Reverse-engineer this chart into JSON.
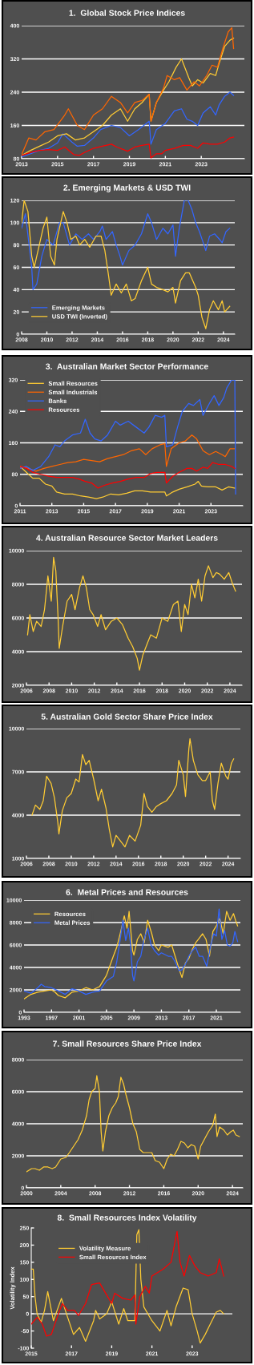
{
  "chart_data": [
    {
      "type": "line",
      "title": "1.  Global Stock Price Indices",
      "xlim": [
        2013,
        2025.4
      ],
      "xticks": [
        2013,
        2015,
        2017,
        2019,
        2021,
        2023
      ],
      "ylim": [
        80,
        400
      ],
      "yticks": [
        80,
        160,
        240,
        320,
        400
      ],
      "grid": "y",
      "series": [
        {
          "color": "#3366ff",
          "x": [
            2013,
            2013.5,
            2014,
            2014.5,
            2015,
            2015.3,
            2015.8,
            2016.1,
            2016.5,
            2017,
            2017.4,
            2018,
            2018.5,
            2019,
            2019.5,
            2020.1,
            2020.2,
            2020.5,
            2021,
            2021.5,
            2021.9,
            2022.2,
            2022.5,
            2022.8,
            2023.1,
            2023.5,
            2023.8,
            2024,
            2024.3,
            2024.6,
            2024.8
          ],
          "values": [
            84,
            92,
            100,
            105,
            118,
            140,
            120,
            110,
            112,
            130,
            150,
            160,
            155,
            135,
            150,
            170,
            115,
            150,
            165,
            195,
            200,
            175,
            170,
            160,
            190,
            205,
            185,
            210,
            230,
            240,
            232
          ]
        },
        {
          "color": "#ffcc33",
          "x": [
            2013,
            2013.5,
            2014,
            2014.5,
            2015,
            2015.5,
            2016,
            2016.5,
            2017,
            2017.5,
            2018,
            2018.5,
            2018.9,
            2019.3,
            2019.7,
            2020.1,
            2020.2,
            2020.5,
            2020.9,
            2021.2,
            2021.6,
            2021.9,
            2022.3,
            2022.5,
            2022.8,
            2023.1,
            2023.5,
            2023.8,
            2024,
            2024.3,
            2024.6,
            2024.8
          ],
          "values": [
            88,
            100,
            110,
            120,
            135,
            140,
            125,
            130,
            145,
            160,
            185,
            200,
            170,
            200,
            215,
            235,
            170,
            215,
            245,
            265,
            300,
            320,
            275,
            255,
            270,
            262,
            285,
            280,
            310,
            350,
            365,
            370
          ]
        },
        {
          "color": "#ff6600",
          "x": [
            2013,
            2013.4,
            2013.8,
            2014.3,
            2014.8,
            2015.4,
            2015.6,
            2016.1,
            2016.5,
            2017,
            2017.5,
            2018,
            2018.5,
            2018.9,
            2019.3,
            2019.7,
            2020.1,
            2020.2,
            2020.5,
            2020.9,
            2021.1,
            2021.5,
            2021.8,
            2022.2,
            2022.6,
            2022.9,
            2023.3,
            2023.6,
            2023.9,
            2024.2,
            2024.5,
            2024.7,
            2024.8
          ],
          "values": [
            90,
            130,
            125,
            145,
            150,
            185,
            200,
            160,
            150,
            185,
            200,
            230,
            215,
            190,
            215,
            220,
            235,
            170,
            215,
            250,
            280,
            270,
            275,
            245,
            265,
            255,
            280,
            305,
            300,
            345,
            385,
            395,
            345
          ]
        },
        {
          "color": "#ff0000",
          "x": [
            2013,
            2013.5,
            2014,
            2014.5,
            2015,
            2015.4,
            2015.9,
            2016.2,
            2016.5,
            2017,
            2017.5,
            2018,
            2018.3,
            2018.9,
            2019.3,
            2019.7,
            2020.1,
            2020.2,
            2020.5,
            2020.8,
            2021,
            2021.5,
            2022,
            2022.4,
            2022.8,
            2023.1,
            2023.5,
            2023.9,
            2024.3,
            2024.6,
            2024.8
          ],
          "values": [
            88,
            95,
            100,
            102,
            100,
            108,
            90,
            88,
            95,
            105,
            110,
            115,
            108,
            98,
            108,
            112,
            115,
            82,
            92,
            92,
            100,
            105,
            112,
            112,
            105,
            118,
            115,
            115,
            120,
            130,
            132
          ]
        }
      ]
    },
    {
      "type": "line",
      "title": "2. Emerging Markets & USD TWI",
      "xlim": [
        2008,
        2024.9
      ],
      "xticks": [
        2008,
        2010,
        2012,
        2014,
        2016,
        2018,
        2020,
        2022,
        2024
      ],
      "ylim": [
        0,
        120
      ],
      "yticks": [
        0,
        20,
        40,
        60,
        80,
        100,
        120
      ],
      "grid": "y",
      "legend": "bottom left",
      "series": [
        {
          "name": "Emerging Markets",
          "color": "#3366ff",
          "x": [
            2008.0,
            2008.3,
            2008.8,
            2008.9,
            2009.2,
            2009.6,
            2010,
            2010.5,
            2011,
            2011.3,
            2011.8,
            2012.3,
            2012.8,
            2013.3,
            2013.7,
            2014.2,
            2014.4,
            2014.7,
            2015.2,
            2015.5,
            2015.8,
            2016,
            2016.5,
            2017,
            2017.5,
            2018,
            2018.3,
            2018.7,
            2019.2,
            2019.6,
            2020,
            2020.2,
            2020.5,
            2020.9,
            2021.2,
            2021.5,
            2021.8,
            2022.1,
            2022.4,
            2022.6,
            2022.9,
            2023.3,
            2023.7,
            2023.9,
            2024.2,
            2024.5
          ],
          "values": [
            95,
            108,
            60,
            40,
            45,
            70,
            85,
            80,
            100,
            100,
            80,
            90,
            85,
            90,
            85,
            92,
            97,
            85,
            92,
            80,
            70,
            62,
            75,
            80,
            90,
            108,
            100,
            85,
            95,
            90,
            98,
            70,
            95,
            120,
            120,
            112,
            100,
            92,
            82,
            75,
            88,
            90,
            85,
            82,
            92,
            95
          ]
        },
        {
          "name": "USD TWI (Inverted)",
          "color": "#ffcc33",
          "x": [
            2008,
            2008.2,
            2008.5,
            2008.8,
            2009,
            2009.3,
            2009.7,
            2010,
            2010.3,
            2010.6,
            2010.8,
            2011.3,
            2011.6,
            2011.9,
            2012.3,
            2012.6,
            2013,
            2013.4,
            2013.9,
            2014.3,
            2014.6,
            2014.9,
            2015.1,
            2015.5,
            2015.9,
            2016.3,
            2016.7,
            2017,
            2017.5,
            2018,
            2018.3,
            2018.7,
            2019.2,
            2019.6,
            2020,
            2020.2,
            2020.6,
            2021,
            2021.3,
            2021.8,
            2022,
            2022.3,
            2022.6,
            2022.9,
            2023.2,
            2023.6,
            2023.9,
            2024.1,
            2024.5
          ],
          "values": [
            100,
            120,
            110,
            70,
            60,
            75,
            95,
            105,
            70,
            62,
            85,
            110,
            100,
            85,
            88,
            80,
            85,
            78,
            88,
            88,
            75,
            52,
            35,
            45,
            37,
            45,
            30,
            32,
            48,
            60,
            45,
            42,
            40,
            38,
            42,
            28,
            48,
            55,
            55,
            42,
            35,
            15,
            5,
            22,
            30,
            22,
            30,
            20,
            25
          ]
        }
      ]
    },
    {
      "type": "line",
      "title": "3.  Australian Market Sector Performance",
      "xlim": [
        2011,
        2025.0
      ],
      "xticks": [
        2011,
        2013,
        2015,
        2017,
        2019,
        2021,
        2023
      ],
      "ylim": [
        0,
        320
      ],
      "yticks": [
        0,
        80,
        160,
        240,
        320
      ],
      "grid": "y",
      "legend": "top left",
      "series": [
        {
          "name": "Small Resources",
          "color": "#ffcc33",
          "x": [
            2011,
            2011.4,
            2011.8,
            2012.2,
            2012.6,
            2013,
            2013.3,
            2013.8,
            2014.3,
            2014.8,
            2015.3,
            2015.8,
            2016.2,
            2016.7,
            2017.2,
            2017.7,
            2018.2,
            2018.7,
            2019.2,
            2019.7,
            2020.1,
            2020.2,
            2020.6,
            2021,
            2021.5,
            2022,
            2022.2,
            2022.4,
            2022.8,
            2023.3,
            2023.7,
            2024.1,
            2024.5
          ],
          "values": [
            100,
            85,
            70,
            70,
            55,
            50,
            35,
            30,
            30,
            25,
            22,
            18,
            22,
            30,
            28,
            32,
            38,
            38,
            35,
            35,
            35,
            25,
            35,
            42,
            48,
            55,
            62,
            50,
            48,
            48,
            40,
            48,
            45
          ]
        },
        {
          "name": "Small Industrials",
          "color": "#ff6600",
          "x": [
            2011,
            2011.5,
            2012,
            2012.5,
            2013,
            2013.5,
            2014,
            2014.5,
            2015,
            2015.5,
            2016,
            2016.5,
            2017,
            2017.5,
            2018,
            2018.5,
            2018.9,
            2019.3,
            2019.8,
            2020.1,
            2020.2,
            2020.5,
            2021,
            2021.4,
            2021.8,
            2022.1,
            2022.5,
            2022.9,
            2023.3,
            2023.7,
            2023.9,
            2024.2,
            2024.5
          ],
          "values": [
            100,
            95,
            88,
            95,
            100,
            105,
            110,
            112,
            118,
            115,
            112,
            120,
            125,
            130,
            140,
            145,
            130,
            145,
            155,
            158,
            100,
            145,
            160,
            165,
            180,
            170,
            140,
            130,
            138,
            130,
            125,
            145,
            145
          ]
        },
        {
          "name": "Banks",
          "color": "#3366ff",
          "x": [
            2011,
            2011.4,
            2011.8,
            2012.3,
            2012.8,
            2013.2,
            2013.5,
            2013.8,
            2014.3,
            2014.8,
            2015.1,
            2015.4,
            2015.7,
            2016.1,
            2016.5,
            2017,
            2017.3,
            2017.8,
            2018.3,
            2018.8,
            2019.1,
            2019.5,
            2019.9,
            2020.1,
            2020.2,
            2020.6,
            2020.9,
            2021.2,
            2021.6,
            2021.9,
            2022.3,
            2022.5,
            2022.9,
            2023.2,
            2023.5,
            2023.8,
            2024,
            2024.3,
            2024.5,
            2024.55
          ],
          "values": [
            95,
            100,
            90,
            100,
            125,
            155,
            150,
            165,
            180,
            185,
            220,
            185,
            170,
            165,
            180,
            215,
            205,
            215,
            200,
            185,
            200,
            230,
            225,
            230,
            150,
            155,
            200,
            240,
            260,
            255,
            270,
            230,
            260,
            280,
            255,
            275,
            300,
            320,
            320,
            30
          ]
        },
        {
          "name": "Resources",
          "color": "#ff0000",
          "x": [
            2011,
            2011.4,
            2011.8,
            2012.3,
            2012.8,
            2013.3,
            2013.7,
            2014.3,
            2014.7,
            2015.1,
            2015.5,
            2015.9,
            2016.3,
            2016.8,
            2017.3,
            2017.8,
            2018.3,
            2018.8,
            2019.2,
            2019.6,
            2020.1,
            2020.2,
            2020.6,
            2021,
            2021.5,
            2021.8,
            2022.1,
            2022.5,
            2022.8,
            2023.1,
            2023.5,
            2023.9,
            2024.3,
            2024.5
          ],
          "values": [
            100,
            95,
            85,
            80,
            75,
            72,
            72,
            72,
            68,
            62,
            58,
            45,
            52,
            58,
            62,
            68,
            72,
            72,
            82,
            85,
            85,
            58,
            75,
            85,
            95,
            95,
            88,
            98,
            95,
            110,
            105,
            105,
            100,
            95
          ]
        }
      ]
    },
    {
      "type": "line",
      "title": "4. Australian Resource Sector Market Leaders",
      "xlim": [
        2006,
        2025.07
      ],
      "xticks": [
        2006,
        2008,
        2010,
        2012,
        2014,
        2016,
        2018,
        2020,
        2022,
        2024
      ],
      "ylim": [
        2000,
        10000
      ],
      "yticks": [
        2000,
        4000,
        6000,
        8000,
        10000
      ],
      "grid": "y",
      "series": [
        {
          "color": "#ffcc33",
          "x": [
            2006.1,
            2006.3,
            2006.6,
            2006.9,
            2007.3,
            2007.6,
            2007.9,
            2008.2,
            2008.4,
            2008.6,
            2008.8,
            2008.9,
            2009.2,
            2009.6,
            2010,
            2010.3,
            2010.7,
            2011,
            2011.3,
            2011.6,
            2011.9,
            2012.3,
            2012.6,
            2013,
            2013.5,
            2014,
            2014.5,
            2015,
            2015.4,
            2015.8,
            2016,
            2016.3,
            2016.7,
            2017,
            2017.5,
            2018,
            2018.5,
            2019,
            2019.4,
            2019.7,
            2020,
            2020.3,
            2020.6,
            2020.9,
            2021.2,
            2021.5,
            2021.8,
            2022.1,
            2022.5,
            2022.8,
            2023.1,
            2023.5,
            2023.9,
            2024.2,
            2024.5
          ],
          "values": [
            5000,
            6200,
            5200,
            5800,
            5500,
            6500,
            8500,
            7000,
            9600,
            8800,
            6000,
            4200,
            5500,
            7000,
            7400,
            6500,
            7800,
            8500,
            7800,
            6500,
            6200,
            5500,
            6200,
            5300,
            5800,
            6000,
            5600,
            4800,
            4300,
            3600,
            2900,
            3800,
            4500,
            5000,
            4800,
            6000,
            5800,
            6800,
            7000,
            5200,
            6800,
            6200,
            8000,
            7200,
            8300,
            7000,
            8500,
            9100,
            8400,
            8700,
            8600,
            8300,
            8700,
            8100,
            7600
          ]
        }
      ]
    },
    {
      "type": "line",
      "title": "5. Australian Gold Sector Share Price Index",
      "xlim": [
        2006,
        2025.1
      ],
      "xticks": [
        2006,
        2008,
        2010,
        2012,
        2014,
        2016,
        2018,
        2020,
        2022,
        2024
      ],
      "ylim": [
        1000,
        10000
      ],
      "yticks": [
        1000,
        4000,
        7000,
        10000
      ],
      "grid": "y",
      "series": [
        {
          "color": "#ffcc33",
          "x": [
            2006.5,
            2006.8,
            2007.2,
            2007.5,
            2007.8,
            2008.2,
            2008.5,
            2008.8,
            2008.9,
            2009.2,
            2009.6,
            2010,
            2010.4,
            2010.7,
            2011,
            2011.3,
            2011.6,
            2012,
            2012.4,
            2012.7,
            2013.1,
            2013.4,
            2013.7,
            2014,
            2014.5,
            2014.8,
            2015.2,
            2015.7,
            2016.2,
            2016.5,
            2016.8,
            2017.2,
            2017.6,
            2018,
            2018.5,
            2019,
            2019.4,
            2019.6,
            2020,
            2020.2,
            2020.5,
            2020.6,
            2020.9,
            2021.3,
            2021.7,
            2022,
            2022.4,
            2022.6,
            2022.8,
            2023.1,
            2023.4,
            2023.8,
            2024,
            2024.3,
            2024.5
          ],
          "values": [
            4000,
            4700,
            4400,
            5000,
            6700,
            6200,
            5200,
            3500,
            2700,
            4300,
            5200,
            5500,
            6500,
            6300,
            8200,
            7500,
            7800,
            6500,
            5000,
            5800,
            4500,
            3000,
            1800,
            2600,
            2100,
            1800,
            2600,
            2200,
            3300,
            5500,
            4600,
            4200,
            4600,
            4800,
            5000,
            5500,
            6100,
            7800,
            6800,
            5300,
            8600,
            9300,
            7800,
            6800,
            6400,
            6400,
            7000,
            5000,
            4400,
            6200,
            7600,
            6700,
            6500,
            7600,
            7900
          ]
        }
      ]
    },
    {
      "type": "line",
      "title": "6.  Metal Prices and Resources",
      "xlim": [
        1993,
        2024.5
      ],
      "xticks": [
        1993,
        1997,
        2001,
        2005,
        2009,
        2013,
        2017,
        2021
      ],
      "ylim": [
        0,
        10000
      ],
      "yticks": [
        0,
        2000,
        4000,
        6000,
        8000,
        10000
      ],
      "grid": "y",
      "legend": "top left",
      "series": [
        {
          "name": "Resources",
          "color": "#ffcc33",
          "x": [
            1993,
            1994,
            1995,
            1996,
            1997,
            1997.5,
            1998,
            1999,
            2000,
            2001,
            2002,
            2003,
            2004,
            2005,
            2006,
            2006.5,
            2007,
            2007.6,
            2008,
            2008.3,
            2008.8,
            2009,
            2009.5,
            2010,
            2010.5,
            2011,
            2011.6,
            2012,
            2012.6,
            2013,
            2014,
            2014.5,
            2015,
            2015.6,
            2016,
            2016.5,
            2017,
            2017.5,
            2018,
            2018.5,
            2019,
            2019.5,
            2020,
            2020.5,
            2021,
            2021.5,
            2022,
            2022.5,
            2023,
            2023.5,
            2023.8,
            2024.1
          ],
          "values": [
            1200,
            1600,
            1800,
            1900,
            2000,
            1800,
            1500,
            1300,
            1800,
            1900,
            2200,
            2000,
            2300,
            3300,
            5000,
            5800,
            7000,
            8600,
            7500,
            9000,
            5500,
            5100,
            6500,
            7000,
            6200,
            8200,
            7000,
            6000,
            5500,
            6000,
            5800,
            6000,
            5000,
            3800,
            3100,
            4400,
            4800,
            5600,
            6200,
            6600,
            7000,
            6500,
            5000,
            7200,
            7700,
            8400,
            7000,
            9000,
            8200,
            8800,
            8200,
            7700
          ]
        },
        {
          "name": "Metal Prices",
          "color": "#3366ff",
          "x": [
            1993,
            1994,
            1995,
            1995.5,
            1996,
            1997,
            1998,
            1999,
            2000,
            2001,
            2002,
            2003,
            2004,
            2005,
            2006,
            2006.5,
            2007,
            2007.4,
            2007.8,
            2008.2,
            2008.5,
            2008.8,
            2009,
            2009.5,
            2010,
            2010.4,
            2011,
            2011.5,
            2012,
            2012.6,
            2013,
            2014,
            2014.5,
            2015,
            2015.6,
            2016,
            2016.5,
            2017,
            2017.5,
            2018,
            2018.5,
            2019,
            2019.6,
            2020.2,
            2020.6,
            2021,
            2021.4,
            2021.8,
            2022.2,
            2022.6,
            2023,
            2023.4,
            2023.7,
            2024.1
          ],
          "values": [
            1900,
            1700,
            2200,
            2500,
            2300,
            2200,
            1900,
            1600,
            2100,
            1900,
            1600,
            1800,
            1900,
            2800,
            3200,
            4500,
            6500,
            8200,
            6400,
            7500,
            6200,
            3300,
            2800,
            4500,
            5000,
            6300,
            7500,
            6000,
            5500,
            5100,
            5300,
            5000,
            5000,
            4500,
            3700,
            3800,
            4300,
            5000,
            5500,
            5800,
            5000,
            5000,
            4100,
            6000,
            7000,
            6800,
            9200,
            6500,
            7300,
            6000,
            5900,
            6200,
            7200,
            6300
          ]
        }
      ]
    },
    {
      "type": "line",
      "title": "7. Small Resources Share Price Index",
      "xlim": [
        2000,
        2025.2
      ],
      "xticks": [
        2000,
        2004,
        2008,
        2012,
        2016,
        2020,
        2024
      ],
      "ylim": [
        0,
        8000
      ],
      "yticks": [
        0,
        2000,
        4000,
        6000,
        8000
      ],
      "grid": "y",
      "series": [
        {
          "color": "#ffcc33",
          "x": [
            2000,
            2000.6,
            2001,
            2001.5,
            2002,
            2002.5,
            2003,
            2003.4,
            2004,
            2004.6,
            2005,
            2005.5,
            2006,
            2006.5,
            2007,
            2007.3,
            2007.6,
            2008,
            2008.2,
            2008.5,
            2008.7,
            2008.9,
            2009.2,
            2009.6,
            2010,
            2010.4,
            2010.7,
            2011,
            2011.3,
            2011.6,
            2012,
            2012.4,
            2012.8,
            2013.2,
            2013.6,
            2014,
            2014.6,
            2015,
            2015.5,
            2016,
            2016.4,
            2016.8,
            2017.2,
            2017.6,
            2018,
            2018.4,
            2018.8,
            2019.2,
            2019.6,
            2020,
            2020.3,
            2020.8,
            2021.2,
            2021.7,
            2022,
            2022.2,
            2022.5,
            2023,
            2023.4,
            2023.8,
            2024.1,
            2024.4,
            2024.8
          ],
          "values": [
            1000,
            1200,
            1200,
            1100,
            1300,
            1300,
            1200,
            1300,
            1800,
            1900,
            2200,
            2600,
            3000,
            3600,
            4500,
            5500,
            6000,
            6200,
            7000,
            6000,
            3500,
            2300,
            3500,
            4500,
            5000,
            5300,
            5700,
            6900,
            6500,
            5800,
            5000,
            4000,
            3500,
            2400,
            2200,
            2200,
            2200,
            1700,
            1600,
            1200,
            1800,
            2100,
            2000,
            2400,
            2900,
            2800,
            2500,
            2700,
            2600,
            1800,
            2600,
            3100,
            3500,
            3900,
            4600,
            3200,
            3800,
            3600,
            3300,
            3500,
            3600,
            3300,
            3200
          ]
        }
      ]
    },
    {
      "type": "line",
      "title": "8.  Small Resources Index Volatility",
      "ylabel": "Volatility Index",
      "xlim": [
        2015,
        2025.0
      ],
      "xticks": [
        2015,
        2017,
        2019,
        2021,
        2023
      ],
      "ylim": [
        -100,
        250
      ],
      "yticks": [
        -100,
        -50,
        0,
        50,
        100,
        150,
        200,
        250
      ],
      "legend": "top left",
      "ref_lines": [
        {
          "axis": "y",
          "value": 0,
          "color": "#ffffff"
        }
      ],
      "series": [
        {
          "name": "Volatility Measure",
          "color": "#ffcc33",
          "x": [
            2015.0,
            2015.1,
            2015.19,
            2015.29,
            2015.49,
            2015.66,
            2015.82,
            2016.1,
            2016.5,
            2016.75,
            2017.1,
            2017.4,
            2017.7,
            2018.1,
            2018.2,
            2018.4,
            2018.75,
            2019.0,
            2019.35,
            2019.6,
            2019.8,
            2020.15,
            2020.25,
            2020.35,
            2020.45,
            2020.6,
            2021.0,
            2021.4,
            2021.75,
            2021.95,
            2022.2,
            2022.55,
            2022.8,
            2023.0,
            2023.25,
            2023.4,
            2023.65,
            2023.9,
            2024.2,
            2024.4,
            2024.57
          ],
          "values": [
            130,
            130,
            50,
            0,
            -25,
            10,
            65,
            -20,
            45,
            0,
            -60,
            -40,
            -80,
            -20,
            10,
            -15,
            0,
            35,
            -30,
            15,
            -20,
            -20,
            230,
            245,
            100,
            20,
            -20,
            -50,
            10,
            -35,
            20,
            75,
            70,
            0,
            -50,
            -85,
            -60,
            -30,
            5,
            10,
            0
          ]
        },
        {
          "name": "Small Resources Index",
          "color": "#ff0000",
          "x": [
            2015.0,
            2015.3,
            2015.55,
            2015.76,
            2016.0,
            2016.35,
            2016.55,
            2016.8,
            2017.15,
            2017.35,
            2017.7,
            2018.0,
            2018.4,
            2018.75,
            2019.0,
            2019.15,
            2019.55,
            2019.95,
            2020.15,
            2020.2,
            2020.4,
            2020.67,
            2020.87,
            2021.0,
            2021.55,
            2021.95,
            2022.25,
            2022.4,
            2022.6,
            2022.87,
            2023.13,
            2023.4,
            2023.8,
            2024.2,
            2024.35,
            2024.57
          ],
          "values": [
            -30,
            -10,
            -30,
            -65,
            -60,
            0,
            30,
            10,
            10,
            -5,
            30,
            85,
            90,
            55,
            30,
            60,
            45,
            40,
            55,
            -30,
            50,
            80,
            60,
            110,
            130,
            150,
            240,
            150,
            110,
            170,
            140,
            120,
            110,
            120,
            160,
            110
          ]
        }
      ]
    }
  ]
}
